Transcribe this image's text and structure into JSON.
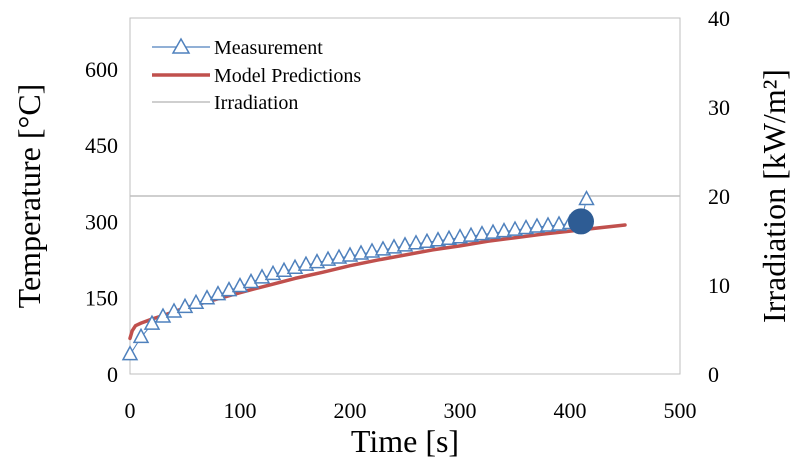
{
  "chart_data": {
    "type": "line",
    "xlabel": "Time [s]",
    "ylabel": "Temperature [°C]",
    "y2label": "Irradiation [kW/m²]",
    "xlim": [
      0,
      500
    ],
    "ylim": [
      0,
      700
    ],
    "y2lim": [
      0,
      40
    ],
    "x_ticks": [
      "0",
      "100",
      "200",
      "300",
      "400",
      "500"
    ],
    "y_ticks": [
      "0",
      "150",
      "300",
      "450",
      "600"
    ],
    "y2_ticks": [
      "0",
      "10",
      "20",
      "30",
      "40"
    ],
    "legend_position": "top-left",
    "grid": false,
    "series": [
      {
        "name": "Measurement",
        "axis": "left",
        "marker": "triangle-open",
        "color": "#4f81bd",
        "x": [
          0,
          10,
          20,
          30,
          40,
          50,
          60,
          70,
          80,
          90,
          100,
          110,
          120,
          130,
          140,
          150,
          160,
          170,
          180,
          190,
          200,
          210,
          220,
          230,
          240,
          250,
          260,
          270,
          280,
          290,
          300,
          310,
          320,
          330,
          340,
          350,
          360,
          370,
          380,
          390,
          400,
          410,
          415
        ],
        "y": [
          38,
          72,
          98,
          112,
          122,
          131,
          139,
          148,
          156,
          164,
          172,
          180,
          189,
          196,
          202,
          208,
          214,
          219,
          224,
          228,
          232,
          236,
          240,
          244,
          248,
          252,
          256,
          259,
          262,
          265,
          268,
          271,
          274,
          277,
          280,
          283,
          286,
          289,
          291,
          293,
          296,
          300,
          343
        ]
      },
      {
        "name": "Model Predictions",
        "axis": "left",
        "style": "line",
        "color": "#c0504d",
        "x": [
          0,
          2,
          5,
          10,
          20,
          30,
          50,
          75,
          100,
          125,
          150,
          175,
          200,
          225,
          250,
          275,
          300,
          325,
          350,
          375,
          400,
          425,
          450
        ],
        "y": [
          70,
          85,
          95,
          100,
          108,
          115,
          130,
          145,
          160,
          174,
          188,
          200,
          213,
          224,
          234,
          244,
          252,
          261,
          268,
          275,
          281,
          287,
          293
        ]
      },
      {
        "name": "Irradiation",
        "axis": "right",
        "style": "line",
        "color": "#bfbfbf",
        "x": [
          0,
          500
        ],
        "y": [
          20,
          20
        ]
      },
      {
        "name": "",
        "axis": "left",
        "marker": "circle-filled",
        "color": "#2e5c94",
        "x": [
          410
        ],
        "y": [
          300
        ]
      }
    ]
  }
}
